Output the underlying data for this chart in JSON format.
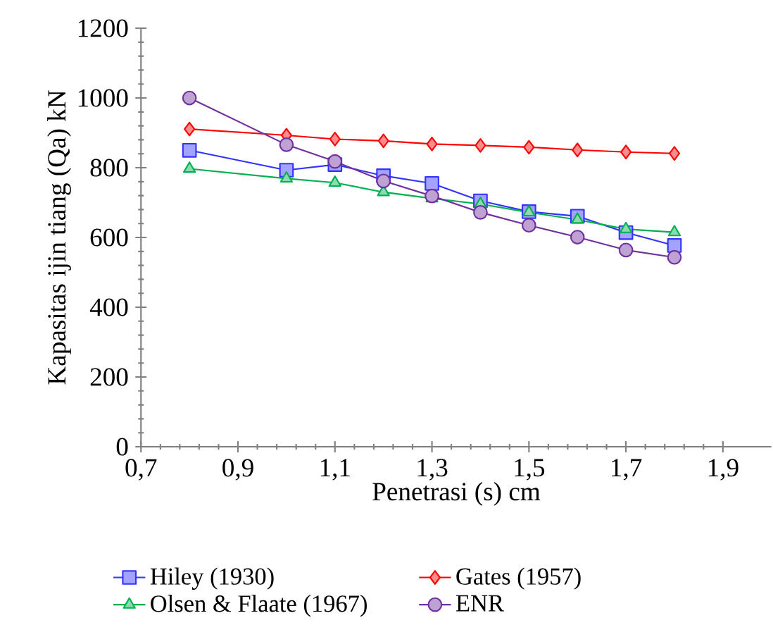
{
  "chart_data": {
    "type": "line",
    "xlabel": "Penetrasi (s) cm",
    "ylabel": "Kapasitas ijin tiang (Qa) kN",
    "x": [
      0.8,
      1.0,
      1.1,
      1.2,
      1.3,
      1.4,
      1.5,
      1.6,
      1.7,
      1.8
    ],
    "series": [
      {
        "name": "Hiley (1930)",
        "color": "#3333ff",
        "marker": "square",
        "values": [
          850,
          793,
          809,
          777,
          755,
          705,
          674,
          661,
          614,
          577
        ]
      },
      {
        "name": "Gates (1957)",
        "color": "#ff0000",
        "marker": "diamond",
        "values": [
          911,
          893,
          882,
          877,
          868,
          864,
          859,
          851,
          845,
          841
        ]
      },
      {
        "name": "Olsen & Flaate (1967)",
        "color": "#00b050",
        "marker": "triangle",
        "values": [
          797,
          769,
          757,
          730,
          712,
          696,
          672,
          651,
          624,
          615
        ]
      },
      {
        "name": "ENR",
        "color": "#7030a0",
        "marker": "circle",
        "values": [
          1000,
          866,
          818,
          762,
          719,
          672,
          635,
          601,
          564,
          543
        ]
      }
    ],
    "xlim": [
      0.7,
      2.0
    ],
    "ylim": [
      0,
      1200
    ],
    "xticks": [
      {
        "value": 0.7,
        "label": "0,7"
      },
      {
        "value": 0.9,
        "label": "0,9"
      },
      {
        "value": 1.1,
        "label": "1,1"
      },
      {
        "value": 1.3,
        "label": "1,3"
      },
      {
        "value": 1.5,
        "label": "1,5"
      },
      {
        "value": 1.7,
        "label": "1,7"
      },
      {
        "value": 1.9,
        "label": "1,9"
      }
    ],
    "yticks": [
      0,
      200,
      400,
      600,
      800,
      1000,
      1200
    ],
    "grid": false,
    "legend": "bottom",
    "line_style": "solid"
  }
}
